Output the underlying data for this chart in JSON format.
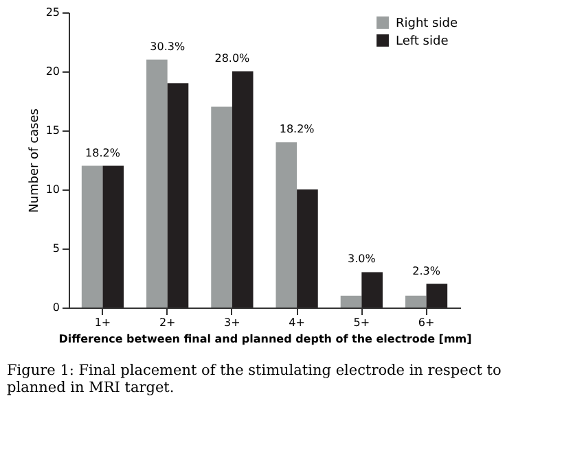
{
  "chart_data": {
    "type": "bar",
    "xlabel": "Difference between final and planned depth of the electrode [mm]",
    "ylabel": "Number of cases",
    "categories": [
      "1+",
      "2+",
      "3+",
      "4+",
      "5+",
      "6+"
    ],
    "series": [
      {
        "name": "Right side",
        "color": "#9a9e9e",
        "values": [
          12,
          21,
          17,
          14,
          1,
          1
        ]
      },
      {
        "name": "Left side",
        "color": "#231f20",
        "values": [
          12,
          19,
          20,
          10,
          3,
          2
        ]
      }
    ],
    "ylim": [
      0,
      25
    ],
    "yticks": [
      0,
      5,
      10,
      15,
      20,
      25
    ],
    "grid": false,
    "legend": "top right",
    "annotations": [
      {
        "text": "18.2%",
        "x": "1+",
        "y": 12
      },
      {
        "text": "30.3%",
        "x": "2+",
        "y": 21
      },
      {
        "text": "28.0%",
        "x": "3+",
        "y": 20
      },
      {
        "text": "18.2%",
        "x": "4+",
        "y": 14
      },
      {
        "text": "3.0%",
        "x": "5+",
        "y": 3
      },
      {
        "text": "2.3%",
        "x": "6+",
        "y": 2
      },
      "Figure 1: Final placement of the stimulating electrode in respect to planned in MRI target."
    ]
  }
}
